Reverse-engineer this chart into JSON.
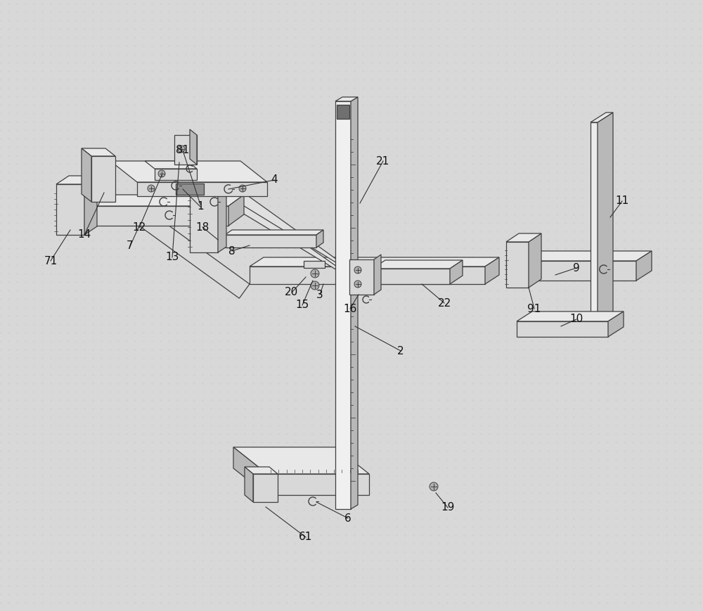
{
  "bg_color": "#d8d8d8",
  "line_color": "#404040",
  "face_light": "#f0f0f0",
  "face_mid": "#d8d8d8",
  "face_dark": "#b8b8b8",
  "face_top": "#e8e8e8",
  "lw": 0.9
}
